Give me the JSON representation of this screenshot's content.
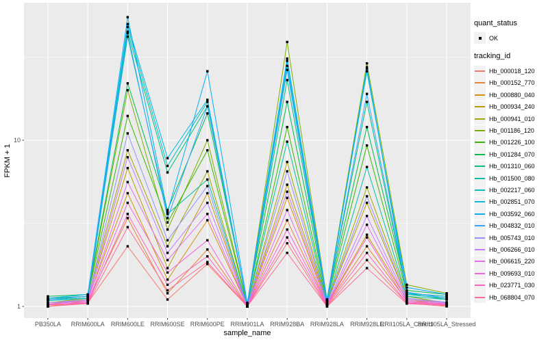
{
  "figure": {
    "background": "#FFFFFF",
    "panel_background": "#EBEBEB",
    "gridline_color": "#FFFFFF",
    "tick_color": "#333333",
    "tick_label_color": "#4D4D4D",
    "axis_title_color": "#000000",
    "point_color": "#000000",
    "legend_key_background": "#F2F2F2"
  },
  "chart_data": {
    "type": "line",
    "title": "",
    "xlabel": "sample_name",
    "ylabel": "FPKM + 1",
    "y_scale": "log10",
    "y_ticks": [
      1,
      10
    ],
    "y_tick_labels": [
      "1",
      "10"
    ],
    "y_minor_gridlines": [
      3.1623,
      31.623
    ],
    "ylim": [
      0.85,
      65
    ],
    "grid": true,
    "legend_position": "right",
    "categories": [
      "PB350LA",
      "RRIM600LA",
      "RRIM600LE",
      "RRIM600SE",
      "RRIM600PE",
      "RRIM901LA",
      "RRIM928BA",
      "RRIM928LA",
      "RRIM928LE",
      "RRII105LA_Control",
      "RRII105LA_Stressed"
    ],
    "point_shape": "filled-square",
    "series": [
      {
        "name": "Hb_000018_120",
        "color": "#F8766D",
        "values": [
          1.0,
          1.05,
          2.3,
          1.1,
          1.8,
          1.0,
          2.4,
          1.0,
          1.9,
          1.05,
          1.0
        ]
      },
      {
        "name": "Hb_000152_770",
        "color": "#EA8331",
        "values": [
          1.0,
          1.08,
          3.4,
          1.2,
          2.2,
          1.0,
          3.3,
          1.02,
          2.3,
          1.08,
          1.02
        ]
      },
      {
        "name": "Hb_000880_040",
        "color": "#D89000",
        "values": [
          1.02,
          1.1,
          4.8,
          1.45,
          3.3,
          1.0,
          4.5,
          1.03,
          2.7,
          1.1,
          1.03
        ]
      },
      {
        "name": "Hb_000934_240",
        "color": "#C09B00",
        "values": [
          1.03,
          1.1,
          6.8,
          1.7,
          4.8,
          1.0,
          5.4,
          1.05,
          4.2,
          1.12,
          1.05
        ]
      },
      {
        "name": "Hb_000941_010",
        "color": "#A3A500",
        "values": [
          1.05,
          1.12,
          8.7,
          2.3,
          6.5,
          1.0,
          7.4,
          1.05,
          5.2,
          1.15,
          1.05
        ]
      },
      {
        "name": "Hb_001186_120",
        "color": "#7CAE00",
        "values": [
          1.1,
          1.15,
          20.0,
          2.9,
          10.0,
          1.02,
          39.0,
          1.1,
          29.0,
          1.35,
          1.2
        ]
      },
      {
        "name": "Hb_001226_100",
        "color": "#39B600",
        "values": [
          1.1,
          1.15,
          14.0,
          3.2,
          8.7,
          1.02,
          12.0,
          1.08,
          9.3,
          1.2,
          1.15
        ]
      },
      {
        "name": "Hb_001284_070",
        "color": "#00BB4E",
        "values": [
          1.15,
          1.18,
          22.0,
          3.8,
          14.5,
          1.05,
          17.0,
          1.1,
          12.0,
          1.25,
          1.18
        ]
      },
      {
        "name": "Hb_001310_060",
        "color": "#00BF7D",
        "values": [
          1.12,
          1.15,
          45.0,
          6.4,
          16.0,
          1.03,
          23.0,
          1.08,
          17.0,
          1.2,
          1.1
        ]
      },
      {
        "name": "Hb_001500_080",
        "color": "#00C1A3",
        "values": [
          1.1,
          1.12,
          42.0,
          3.6,
          5.8,
          1.02,
          9.8,
          1.05,
          6.9,
          1.15,
          1.1
        ]
      },
      {
        "name": "Hb_002217_060",
        "color": "#00BFC4",
        "values": [
          1.08,
          1.12,
          48.0,
          7.0,
          17.0,
          1.02,
          28.0,
          1.06,
          27.0,
          1.18,
          1.12
        ]
      },
      {
        "name": "Hb_002851_070",
        "color": "#00BAE0",
        "values": [
          1.1,
          1.15,
          50.0,
          7.8,
          17.5,
          1.03,
          30.0,
          1.08,
          27.5,
          1.2,
          1.15
        ]
      },
      {
        "name": "Hb_003592_060",
        "color": "#00B0F6",
        "values": [
          1.12,
          1.18,
          55.0,
          3.7,
          26.0,
          1.05,
          31.0,
          1.1,
          26.0,
          1.3,
          1.18
        ]
      },
      {
        "name": "Hb_004832_010",
        "color": "#35A2FF",
        "values": [
          1.1,
          1.15,
          44.0,
          3.4,
          16.0,
          1.03,
          26.5,
          1.07,
          19.0,
          1.22,
          1.12
        ]
      },
      {
        "name": "Hb_005743_010",
        "color": "#9590FF",
        "values": [
          1.05,
          1.1,
          11.0,
          2.5,
          5.3,
          1.0,
          6.5,
          1.04,
          4.6,
          1.12,
          1.06
        ]
      },
      {
        "name": "Hb_006266_010",
        "color": "#C77CFF",
        "values": [
          1.05,
          1.08,
          7.9,
          2.1,
          4.2,
          1.0,
          4.9,
          1.03,
          3.5,
          1.1,
          1.05
        ]
      },
      {
        "name": "Hb_006615_220",
        "color": "#E76BF3",
        "values": [
          1.03,
          1.08,
          5.6,
          1.9,
          3.6,
          1.0,
          3.8,
          1.02,
          3.1,
          1.08,
          1.04
        ]
      },
      {
        "name": "Hb_009693_010",
        "color": "#FA62DB",
        "values": [
          1.02,
          1.06,
          4.2,
          1.6,
          2.5,
          1.0,
          2.9,
          1.02,
          2.6,
          1.06,
          1.03
        ]
      },
      {
        "name": "Hb_023771_030",
        "color": "#FF62BC",
        "values": [
          1.02,
          1.05,
          3.6,
          1.35,
          2.0,
          1.0,
          2.6,
          1.01,
          2.1,
          1.05,
          1.02
        ]
      },
      {
        "name": "Hb_068804_070",
        "color": "#FF6A98",
        "values": [
          1.0,
          1.04,
          3.0,
          1.25,
          1.85,
          1.0,
          2.1,
          1.0,
          1.7,
          1.04,
          1.01
        ]
      }
    ],
    "legend": {
      "quant_status_title": "quant_status",
      "quant_status_items": [
        {
          "label": "OK",
          "shape": "black-square"
        }
      ],
      "tracking_title": "tracking_id"
    }
  }
}
